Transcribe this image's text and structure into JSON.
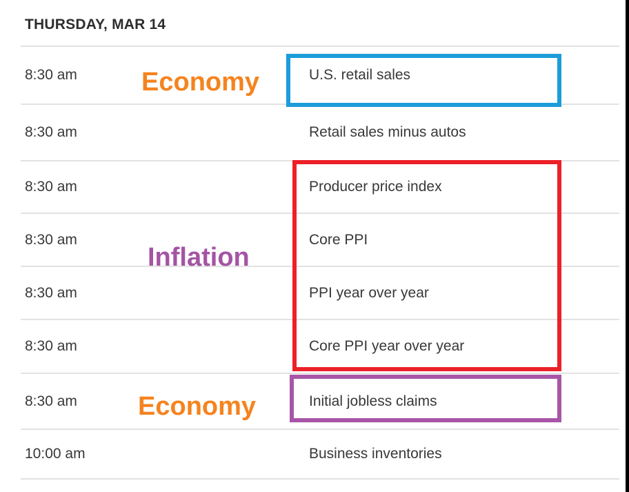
{
  "header": {
    "title": "THURSDAY, MAR 14"
  },
  "calendar": {
    "rows": [
      {
        "time": "8:30 am",
        "event": "U.S. retail sales"
      },
      {
        "time": "8:30 am",
        "event": "Retail sales minus autos"
      },
      {
        "time": "8:30 am",
        "event": "Producer price index"
      },
      {
        "time": "8:30 am",
        "event": "Core PPI"
      },
      {
        "time": "8:30 am",
        "event": "PPI year over year"
      },
      {
        "time": "8:30 am",
        "event": "Core PPI year over year"
      },
      {
        "time": "8:30 am",
        "event": "Initial jobless claims"
      },
      {
        "time": "10:00 am",
        "event": "Business inventories"
      }
    ]
  },
  "annotations": {
    "labels": [
      {
        "text": "Economy",
        "color": "#f5831f",
        "target": "U.S. retail sales"
      },
      {
        "text": "Inflation",
        "color": "#a454a4",
        "target": "PPI rows"
      },
      {
        "text": "Economy",
        "color": "#f5831f",
        "target": "Initial jobless claims"
      }
    ],
    "boxes": [
      {
        "name": "retail-sales-highlight",
        "color": "#1b9dd9"
      },
      {
        "name": "inflation-highlight",
        "color": "#ec2027"
      },
      {
        "name": "jobless-claims-highlight",
        "color": "#a855a8"
      }
    ]
  },
  "window": {
    "edge_color": "#000000",
    "divider_color": "#e2e2e2"
  }
}
